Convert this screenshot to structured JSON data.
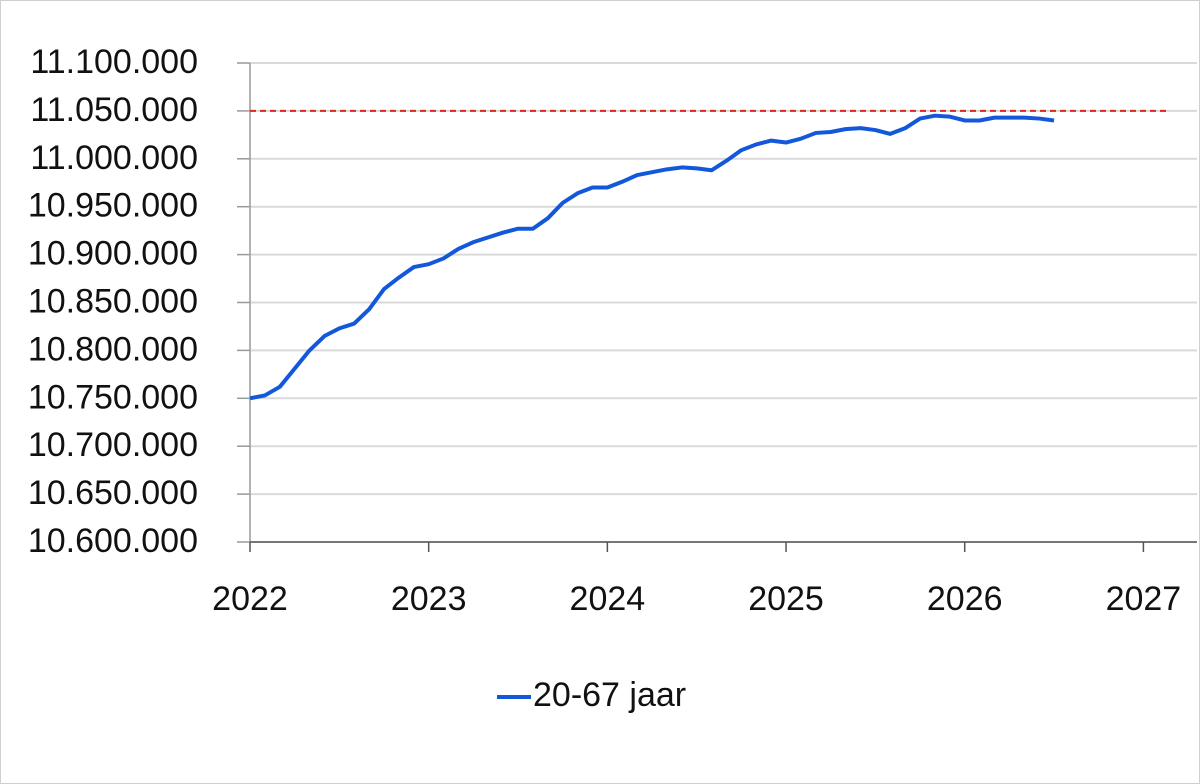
{
  "chart_data": {
    "type": "line",
    "x": [
      2022,
      2022.083,
      2022.167,
      2022.25,
      2022.333,
      2022.417,
      2022.5,
      2022.583,
      2022.667,
      2022.75,
      2022.833,
      2022.917,
      2023,
      2023.083,
      2023.167,
      2023.25,
      2023.333,
      2023.417,
      2023.5,
      2023.583,
      2023.667,
      2023.75,
      2023.833,
      2023.917,
      2024,
      2024.083,
      2024.167,
      2024.25,
      2024.333,
      2024.417,
      2024.5,
      2024.583,
      2024.667,
      2024.75,
      2024.833,
      2024.917,
      2025,
      2025.083,
      2025.167,
      2025.25,
      2025.333,
      2025.417,
      2025.5,
      2025.583,
      2025.667,
      2025.75,
      2025.833,
      2025.917,
      2026,
      2026.083,
      2026.167,
      2026.25,
      2026.333,
      2026.417,
      2026.5
    ],
    "series": [
      {
        "name": "20-67 jaar",
        "color": "#1358db",
        "values": [
          10750000,
          10753000,
          10762000,
          10781000,
          10800000,
          10815000,
          10823000,
          10828000,
          10843000,
          10864000,
          10876000,
          10887000,
          10890000,
          10896000,
          10906000,
          10913000,
          10918000,
          10923000,
          10927000,
          10927000,
          10938000,
          10954000,
          10964000,
          10970000,
          10970000,
          10976000,
          10983000,
          10986000,
          10989000,
          10991000,
          10990000,
          10988000,
          10998000,
          11009000,
          11015000,
          11019000,
          11017000,
          11021000,
          11027000,
          11028000,
          11031000,
          11032000,
          11030000,
          11026000,
          11032000,
          11042000,
          11045000,
          11044000,
          11040000,
          11040000,
          11043000,
          11043000,
          11043000,
          11042000,
          11040000
        ]
      }
    ],
    "reference_line": {
      "value": 11050000,
      "color": "#d9281e",
      "x_range": [
        2022,
        2027.14
      ]
    },
    "xlim": [
      2022,
      2027.3
    ],
    "xticks": [
      2022,
      2023,
      2024,
      2025,
      2026,
      2027
    ],
    "ylim": [
      10600000,
      11100000
    ],
    "yticks": [
      {
        "value": 10600000,
        "label": "10.600.000"
      },
      {
        "value": 10650000,
        "label": "10.650.000"
      },
      {
        "value": 10700000,
        "label": "10.700.000"
      },
      {
        "value": 10750000,
        "label": "10.750.000"
      },
      {
        "value": 10800000,
        "label": "10.800.000"
      },
      {
        "value": 10850000,
        "label": "10.850.000"
      },
      {
        "value": 10900000,
        "label": "10.900.000"
      },
      {
        "value": 10950000,
        "label": "10.950.000"
      },
      {
        "value": 11000000,
        "label": "11.000.000"
      },
      {
        "value": 11050000,
        "label": "11.050.000"
      },
      {
        "value": 11100000,
        "label": "11.100.000"
      }
    ],
    "grid": true,
    "legend": "bottom"
  }
}
